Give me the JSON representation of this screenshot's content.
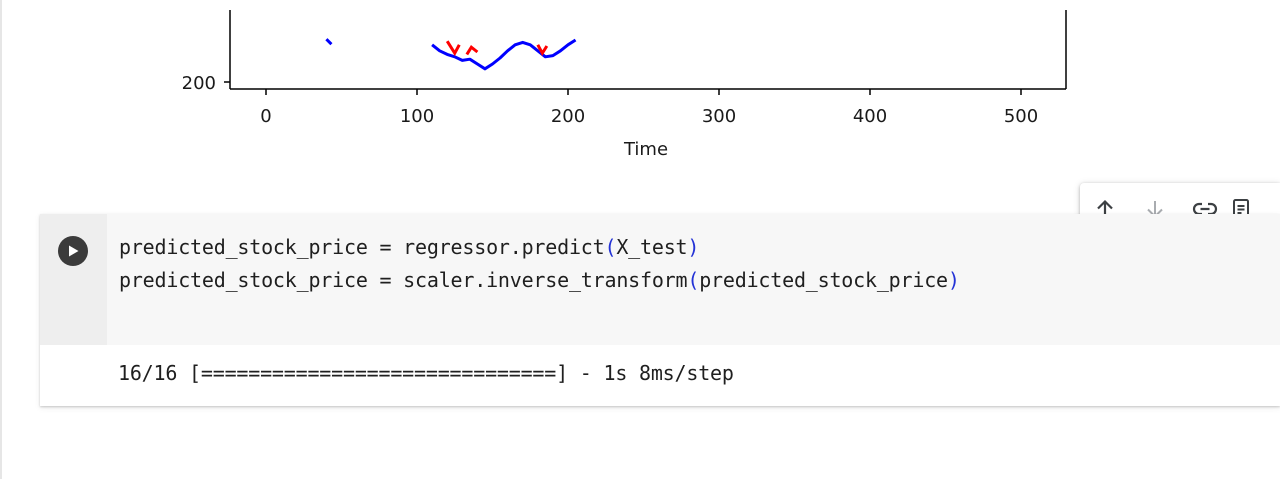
{
  "chart_data": {
    "type": "line",
    "xlabel": "Time",
    "x_ticks": [
      "0",
      "100",
      "200",
      "300",
      "400",
      "500"
    ],
    "y_ticks_visible": [
      "200"
    ],
    "xlim": [
      -25,
      530
    ],
    "series": [
      {
        "color": "#ff0000",
        "x": [
          120,
          125,
          128,
          133,
          136,
          140,
          180,
          183,
          186
        ],
        "y": [
          268,
          248,
          262,
          246,
          258,
          250,
          262,
          248,
          260
        ]
      },
      {
        "color": "#0000ff",
        "x": [
          42,
          110,
          115,
          120,
          125,
          130,
          135,
          140,
          145,
          150,
          155,
          160,
          165,
          170,
          175,
          180,
          185,
          190,
          195,
          200,
          205
        ],
        "y": [
          268,
          262,
          252,
          246,
          242,
          236,
          238,
          230,
          222,
          230,
          240,
          252,
          262,
          266,
          262,
          252,
          242,
          244,
          252,
          262,
          270
        ]
      }
    ]
  },
  "toolbar": {
    "move_up_icon": "arrow-up-icon",
    "move_down_icon": "arrow-down-icon",
    "link_icon": "link-icon",
    "more_icon": "notes-icon"
  },
  "cell": {
    "run_icon": "play-icon",
    "line1": {
      "lhs": "predicted_stock_price = regressor.predict",
      "open": "(",
      "arg": "X_test",
      "close": ")"
    },
    "line2": {
      "lhs": "predicted_stock_price = scaler.inverse_transform",
      "open": "(",
      "arg": "predicted_stock_price",
      "close": ")"
    },
    "output": "16/16 [==============================] - 1s 8ms/step"
  }
}
